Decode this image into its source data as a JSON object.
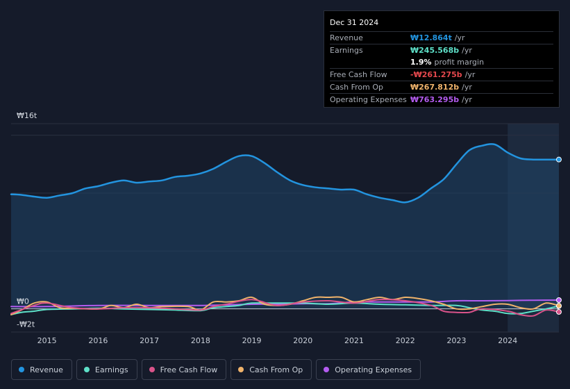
{
  "tooltip": {
    "date": "Dec 31 2024",
    "rows": [
      {
        "label": "Revenue",
        "value": "₩12.864t",
        "unit": "/yr",
        "color": "#2394df"
      },
      {
        "label": "Earnings",
        "value": "₩245.568b",
        "unit": "/yr",
        "color": "#5ee0c8"
      },
      {
        "label": "",
        "value": "1.9%",
        "unit": "profit margin",
        "color": "#ffffff"
      },
      {
        "label": "Free Cash Flow",
        "value": "-₩261.275b",
        "unit": "/yr",
        "color": "#e5484d"
      },
      {
        "label": "Cash From Op",
        "value": "₩267.812b",
        "unit": "/yr",
        "color": "#f0b36b"
      },
      {
        "label": "Operating Expenses",
        "value": "₩763.295b",
        "unit": "/yr",
        "color": "#b45cf0"
      }
    ]
  },
  "legend": [
    {
      "label": "Revenue",
      "color": "#2394df"
    },
    {
      "label": "Earnings",
      "color": "#5ee0c8"
    },
    {
      "label": "Free Cash Flow",
      "color": "#d9538a"
    },
    {
      "label": "Cash From Op",
      "color": "#f0b36b"
    },
    {
      "label": "Operating Expenses",
      "color": "#b45cf0"
    }
  ],
  "chart_data": {
    "type": "line",
    "title": "",
    "xlabel": "",
    "ylabel": "",
    "y_top_label": "₩16t",
    "y_zero_label": "₩0",
    "y_bottom_label": "-₩2t",
    "ylim": [
      -2,
      16
    ],
    "xlim": [
      2014.3,
      2025.0
    ],
    "xticks": [
      2015,
      2016,
      2017,
      2018,
      2019,
      2020,
      2021,
      2022,
      2023,
      2024
    ],
    "xtick_labels": [
      "2015",
      "2016",
      "2017",
      "2018",
      "2019",
      "2020",
      "2021",
      "2022",
      "2023",
      "2024"
    ],
    "forecast_start": 2024.0,
    "series": [
      {
        "name": "Revenue",
        "color": "#2394df",
        "fill": true,
        "x": [
          2014.3,
          2014.5,
          2014.75,
          2015.0,
          2015.25,
          2015.5,
          2015.75,
          2016.0,
          2016.25,
          2016.5,
          2016.75,
          2017.0,
          2017.25,
          2017.5,
          2017.75,
          2018.0,
          2018.25,
          2018.5,
          2018.75,
          2019.0,
          2019.25,
          2019.5,
          2019.75,
          2020.0,
          2020.25,
          2020.5,
          2020.75,
          2021.0,
          2021.25,
          2021.5,
          2021.75,
          2022.0,
          2022.25,
          2022.5,
          2022.75,
          2023.0,
          2023.25,
          2023.5,
          2023.75,
          2024.0,
          2024.25,
          2024.5,
          2024.75,
          2025.0
        ],
        "y": [
          9.9,
          9.85,
          9.7,
          9.6,
          9.8,
          10.0,
          10.4,
          10.6,
          10.9,
          11.1,
          10.9,
          11.0,
          11.1,
          11.4,
          11.5,
          11.7,
          12.1,
          12.7,
          13.2,
          13.2,
          12.6,
          11.8,
          11.1,
          10.7,
          10.5,
          10.4,
          10.3,
          10.3,
          9.9,
          9.6,
          9.4,
          9.2,
          9.6,
          10.4,
          11.2,
          12.5,
          13.7,
          14.1,
          14.2,
          13.5,
          13.0,
          12.9,
          12.9,
          12.9
        ]
      },
      {
        "name": "Earnings",
        "color": "#5ee0c8",
        "fill": false,
        "x": [
          2014.3,
          2014.5,
          2014.75,
          2015.0,
          2015.5,
          2016.0,
          2016.5,
          2017.0,
          2017.5,
          2018.0,
          2018.25,
          2018.5,
          2018.75,
          2019.0,
          2019.5,
          2020.0,
          2020.5,
          2021.0,
          2021.5,
          2022.0,
          2022.5,
          2023.0,
          2023.25,
          2023.5,
          2023.75,
          2024.0,
          2024.25,
          2024.5,
          2024.75,
          2025.0
        ],
        "y": [
          -0.5,
          -0.3,
          -0.2,
          -0.05,
          0.0,
          0.05,
          0.0,
          -0.05,
          -0.1,
          -0.15,
          0.1,
          0.2,
          0.3,
          0.5,
          0.5,
          0.5,
          0.4,
          0.5,
          0.4,
          0.35,
          0.3,
          0.3,
          0.1,
          -0.1,
          -0.2,
          -0.4,
          -0.4,
          -0.2,
          0.0,
          0.25
        ]
      },
      {
        "name": "Free Cash Flow",
        "color": "#d9538a",
        "fill": false,
        "x": [
          2014.3,
          2014.75,
          2015.0,
          2015.5,
          2016.0,
          2016.5,
          2017.0,
          2017.5,
          2018.0,
          2018.25,
          2018.5,
          2019.0,
          2019.5,
          2020.0,
          2020.5,
          2021.0,
          2021.5,
          2022.0,
          2022.5,
          2022.75,
          2023.0,
          2023.25,
          2023.5,
          2024.0,
          2024.25,
          2024.5,
          2024.75,
          2025.0
        ],
        "y": [
          -0.4,
          0.3,
          0.5,
          0.1,
          0.0,
          0.1,
          0.1,
          0.0,
          -0.1,
          0.2,
          0.4,
          0.8,
          0.3,
          0.6,
          0.7,
          0.5,
          0.8,
          0.7,
          0.3,
          -0.2,
          -0.3,
          -0.3,
          0.0,
          -0.2,
          -0.5,
          -0.6,
          -0.1,
          -0.26
        ]
      },
      {
        "name": "Cash From Op",
        "color": "#f0b36b",
        "fill": false,
        "x": [
          2014.3,
          2014.5,
          2014.75,
          2015.0,
          2015.25,
          2015.5,
          2016.0,
          2016.25,
          2016.5,
          2016.75,
          2017.0,
          2017.25,
          2017.75,
          2018.0,
          2018.25,
          2018.5,
          2018.75,
          2019.0,
          2019.25,
          2019.5,
          2019.75,
          2020.0,
          2020.25,
          2020.5,
          2020.75,
          2021.0,
          2021.25,
          2021.5,
          2021.75,
          2022.0,
          2022.25,
          2022.5,
          2022.75,
          2023.0,
          2023.25,
          2023.5,
          2023.75,
          2024.0,
          2024.25,
          2024.5,
          2024.75,
          2025.0
        ],
        "y": [
          -0.5,
          -0.1,
          0.5,
          0.6,
          0.1,
          0.05,
          0.0,
          0.3,
          0.1,
          0.4,
          0.1,
          0.2,
          0.2,
          -0.1,
          0.6,
          0.6,
          0.7,
          1.0,
          0.4,
          0.3,
          0.4,
          0.7,
          1.0,
          1.0,
          1.0,
          0.6,
          0.8,
          1.0,
          0.8,
          1.0,
          0.9,
          0.7,
          0.4,
          0.0,
          0.0,
          0.2,
          0.4,
          0.4,
          0.1,
          0.0,
          0.5,
          0.27
        ]
      },
      {
        "name": "Operating Expenses",
        "color": "#b45cf0",
        "fill": false,
        "x": [
          2014.3,
          2015.0,
          2016.0,
          2017.0,
          2018.0,
          2019.0,
          2019.5,
          2020.0,
          2020.5,
          2021.0,
          2021.5,
          2022.0,
          2022.5,
          2023.0,
          2023.5,
          2024.0,
          2024.5,
          2025.0
        ],
        "y": [
          0.2,
          0.2,
          0.3,
          0.3,
          0.3,
          0.4,
          0.4,
          0.45,
          0.45,
          0.6,
          0.6,
          0.6,
          0.6,
          0.7,
          0.7,
          0.72,
          0.75,
          0.76
        ]
      }
    ]
  }
}
